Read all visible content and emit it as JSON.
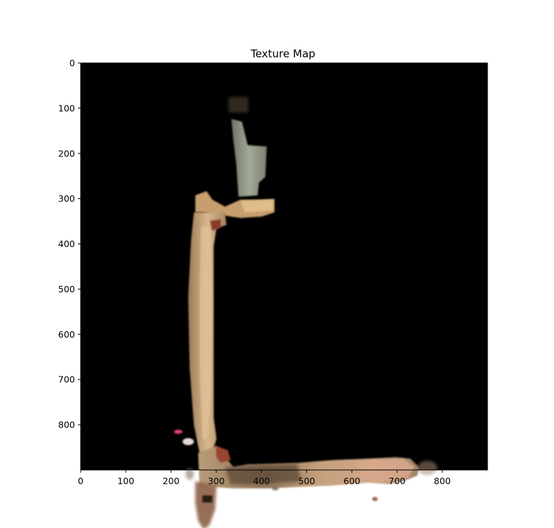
{
  "title": "Texture Map",
  "axes": {
    "x_range": [
      0,
      900
    ],
    "y_range": [
      0,
      900
    ],
    "y_inverted": true,
    "x_ticks": [
      0,
      100,
      200,
      300,
      400,
      500,
      600,
      700,
      800
    ],
    "y_ticks": [
      0,
      100,
      200,
      300,
      400,
      500,
      600,
      700,
      800
    ]
  },
  "colors": {
    "background": "#000000",
    "corridor_tan": "#c9a27a",
    "corridor_gray": "#8e9484",
    "accent_red": "#8a3a2a"
  }
}
